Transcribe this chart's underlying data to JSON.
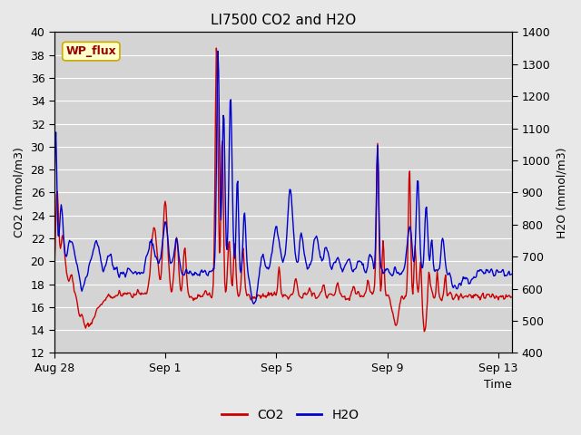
{
  "title": "LI7500 CO2 and H2O",
  "xlabel": "Time",
  "ylabel_left": "CO2 (mmol/m3)",
  "ylabel_right": "H2O (mmol/m3)",
  "ylim_left": [
    12,
    40
  ],
  "ylim_right": [
    400,
    1400
  ],
  "xtick_labels": [
    "Aug 28",
    "Sep 1",
    "Sep 5",
    "Sep 9",
    "Sep 13"
  ],
  "xtick_positions": [
    0,
    4,
    8,
    12,
    16
  ],
  "xlim": [
    0,
    16.5
  ],
  "co2_color": "#cc0000",
  "h2o_color": "#0000cc",
  "fig_facecolor": "#e8e8e8",
  "plot_facecolor": "#d4d4d4",
  "grid_color": "#ffffff",
  "annotation_text": "WP_flux",
  "annotation_facecolor": "#ffffcc",
  "annotation_edgecolor": "#ccaa00",
  "annotation_textcolor": "#990000",
  "title_fontsize": 11,
  "axis_fontsize": 9,
  "tick_fontsize": 9,
  "legend_fontsize": 10,
  "linewidth": 1.0,
  "figsize": [
    6.4,
    4.8
  ],
  "dpi": 100
}
